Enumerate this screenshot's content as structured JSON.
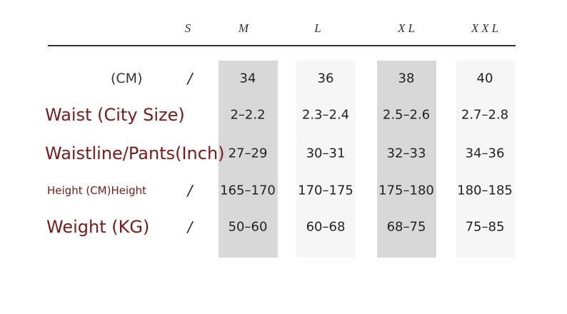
{
  "table": {
    "header": [
      "S",
      "M",
      "L",
      "XL",
      "XXL"
    ],
    "rows": [
      {
        "label": "(CM)",
        "s": "/",
        "values": [
          "34",
          "36",
          "38",
          "40"
        ]
      },
      {
        "label": "Waist (City Size)",
        "values": [
          "2–2.2",
          "2.3–2.4",
          "2.5–2.6",
          "2.7–2.8"
        ]
      },
      {
        "label": "Waistline/Pants(Inch)",
        "values": [
          "27–29",
          "30–31",
          "32–33",
          "34–36"
        ]
      },
      {
        "label": "Height (CM)Height",
        "s": "/",
        "values": [
          "165–170",
          "170–175",
          "175–180",
          "180–185"
        ]
      },
      {
        "label": "Weight (KG)",
        "s": "/",
        "values": [
          "50–60",
          "60–68",
          "68–75",
          "75–85"
        ]
      }
    ]
  }
}
